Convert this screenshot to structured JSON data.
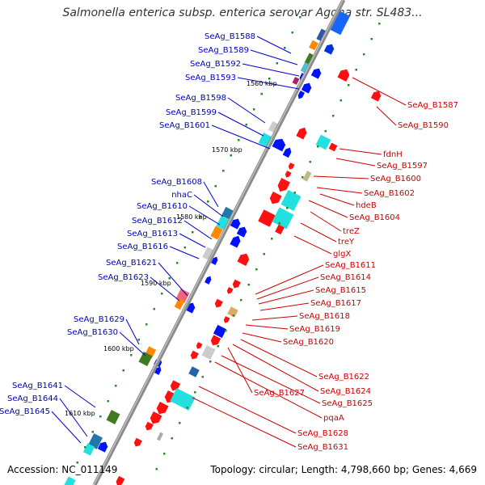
{
  "title": "Salmonella enterica subsp. enterica serovar Agona str. SL483...",
  "footer": {
    "accession": "Accession: NC_011149",
    "summary": "Topology: circular; Length: 4,798,660 bp; Genes: 4,669"
  },
  "colors": {
    "left_label": "#0000cc",
    "right_label": "#cc0000",
    "backbone": "#888888",
    "tick": "#2a8a2a"
  },
  "positions": [
    "1560 kbp",
    "1570 kbp",
    "1580 kbp",
    "1590 kbp",
    "1600 kbp",
    "1610 kbp"
  ],
  "left_labels": [
    "SeAg_B1588",
    "SeAg_B1589",
    "SeAg_B1592",
    "SeAg_B1593",
    "SeAg_B1598",
    "SeAg_B1599",
    "SeAg_B1601",
    "SeAg_B1608",
    "nhaC",
    "SeAg_B1610",
    "SeAg_B1612",
    "SeAg_B1613",
    "SeAg_B1616",
    "SeAg_B1621",
    "SeAg_B1623",
    "SeAg_B1629",
    "SeAg_B1630",
    "SeAg_B1641",
    "SeAg_B1644",
    "SeAg_B1645"
  ],
  "right_labels": [
    "SeAg_B1587",
    "SeAg_B1590",
    "fdnH",
    "SeAg_B1597",
    "SeAg_B1600",
    "SeAg_B1602",
    "hdeB",
    "SeAg_B1604",
    "treZ",
    "treY",
    "glgX",
    "SeAg_B1611",
    "SeAg_B1614",
    "SeAg_B1615",
    "SeAg_B1617",
    "SeAg_B1618",
    "SeAg_B1619",
    "SeAg_B1620",
    "SeAg_B1622",
    "SeAg_B1624",
    "SeAg_B1627",
    "SeAg_B1625",
    "pqaA",
    "SeAg_B1628",
    "SeAg_B1631"
  ]
}
